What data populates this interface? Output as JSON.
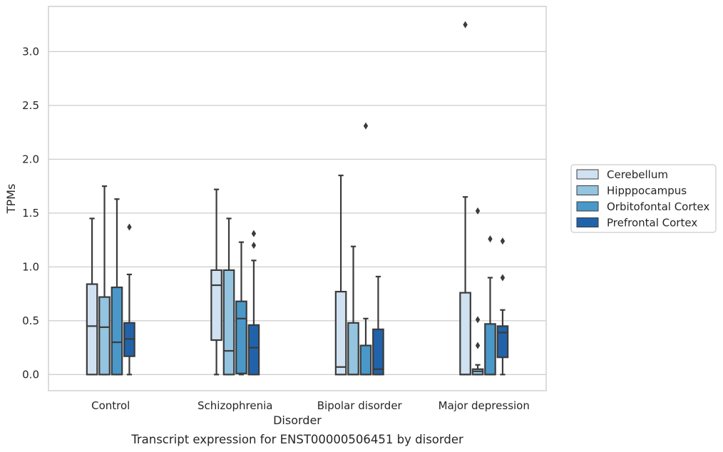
{
  "chart_data": {
    "type": "box",
    "caption": "Transcript expression for ENST00000506451 by disorder",
    "xlabel": "Disorder",
    "ylabel": "TPMs",
    "ylim": [
      -0.15,
      3.42
    ],
    "yticks": [
      "0.0",
      "0.5",
      "1.0",
      "1.5",
      "2.0",
      "2.5",
      "3.0"
    ],
    "grid": true,
    "legend_position": "right",
    "categories": [
      "Control",
      "Schizophrenia",
      "Bipolar disorder",
      "Major depression"
    ],
    "series": [
      {
        "name": "Cerebellum",
        "color": "#d0e1f2",
        "boxes": [
          {
            "min": 0.0,
            "q1": 0.0,
            "median": 0.45,
            "q3": 0.84,
            "max": 1.45,
            "outliers": []
          },
          {
            "min": 0.0,
            "q1": 0.32,
            "median": 0.83,
            "q3": 0.97,
            "max": 1.72,
            "outliers": []
          },
          {
            "min": 0.0,
            "q1": 0.0,
            "median": 0.07,
            "q3": 0.77,
            "max": 1.85,
            "outliers": []
          },
          {
            "min": 0.0,
            "q1": 0.0,
            "median": 0.0,
            "q3": 0.76,
            "max": 1.65,
            "outliers": [
              3.25
            ]
          }
        ]
      },
      {
        "name": "Hipppocampus",
        "color": "#94c4df",
        "boxes": [
          {
            "min": 0.0,
            "q1": 0.0,
            "median": 0.44,
            "q3": 0.72,
            "max": 1.75,
            "outliers": []
          },
          {
            "min": 0.0,
            "q1": 0.0,
            "median": 0.22,
            "q3": 0.97,
            "max": 1.45,
            "outliers": []
          },
          {
            "min": 0.0,
            "q1": 0.0,
            "median": 0.0,
            "q3": 0.48,
            "max": 1.19,
            "outliers": []
          },
          {
            "min": 0.0,
            "q1": 0.0,
            "median": 0.03,
            "q3": 0.05,
            "max": 0.09,
            "outliers": [
              1.52,
              0.51,
              0.27
            ]
          }
        ]
      },
      {
        "name": "Orbitofontal Cortex",
        "color": "#4a98c9",
        "boxes": [
          {
            "min": 0.0,
            "q1": 0.0,
            "median": 0.3,
            "q3": 0.81,
            "max": 1.63,
            "outliers": []
          },
          {
            "min": 0.0,
            "q1": 0.01,
            "median": 0.52,
            "q3": 0.68,
            "max": 1.23,
            "outliers": []
          },
          {
            "min": 0.0,
            "q1": 0.0,
            "median": 0.0,
            "q3": 0.27,
            "max": 0.52,
            "outliers": [
              2.31
            ]
          },
          {
            "min": 0.0,
            "q1": 0.0,
            "median": 0.0,
            "q3": 0.47,
            "max": 0.9,
            "outliers": [
              1.26
            ]
          }
        ]
      },
      {
        "name": "Prefrontal Cortex",
        "color": "#2163aa",
        "boxes": [
          {
            "min": 0.0,
            "q1": 0.17,
            "median": 0.33,
            "q3": 0.48,
            "max": 0.93,
            "outliers": [
              1.37
            ]
          },
          {
            "min": 0.0,
            "q1": 0.0,
            "median": 0.25,
            "q3": 0.46,
            "max": 1.06,
            "outliers": [
              1.31,
              1.2
            ]
          },
          {
            "min": 0.0,
            "q1": 0.0,
            "median": 0.05,
            "q3": 0.42,
            "max": 0.91,
            "outliers": []
          },
          {
            "min": 0.0,
            "q1": 0.16,
            "median": 0.39,
            "q3": 0.45,
            "max": 0.6,
            "outliers": [
              1.24,
              0.9
            ]
          }
        ]
      }
    ]
  }
}
